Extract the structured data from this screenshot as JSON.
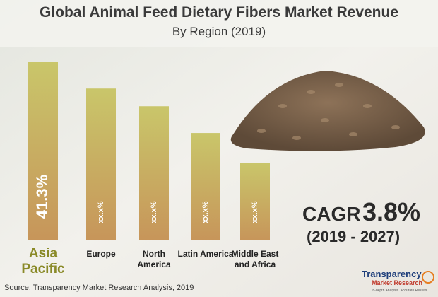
{
  "chart_data": {
    "type": "bar",
    "title": "Global Animal Feed Dietary Fibers Market Revenue",
    "subtitle": "By Region (2019)",
    "categories": [
      "Asia Pacific",
      "Europe",
      "North America",
      "Latin America",
      "Middle East and Africa"
    ],
    "values": [
      41.3,
      35.2,
      31.1,
      24.9,
      18.0
    ],
    "value_labels": [
      "41.3%",
      "xx.x%",
      "xx.x%",
      "xx.x%",
      "xx.x%"
    ],
    "cagr": {
      "label": "CAGR",
      "value": "3.8%",
      "period": "(2019 - 2027)"
    },
    "source": "Source: Transparency Market Research Analysis, 2019",
    "logo": {
      "name": "Transparency",
      "name2": "Market Research",
      "tagline": "In-depth Analysis. Accurate Results"
    }
  }
}
